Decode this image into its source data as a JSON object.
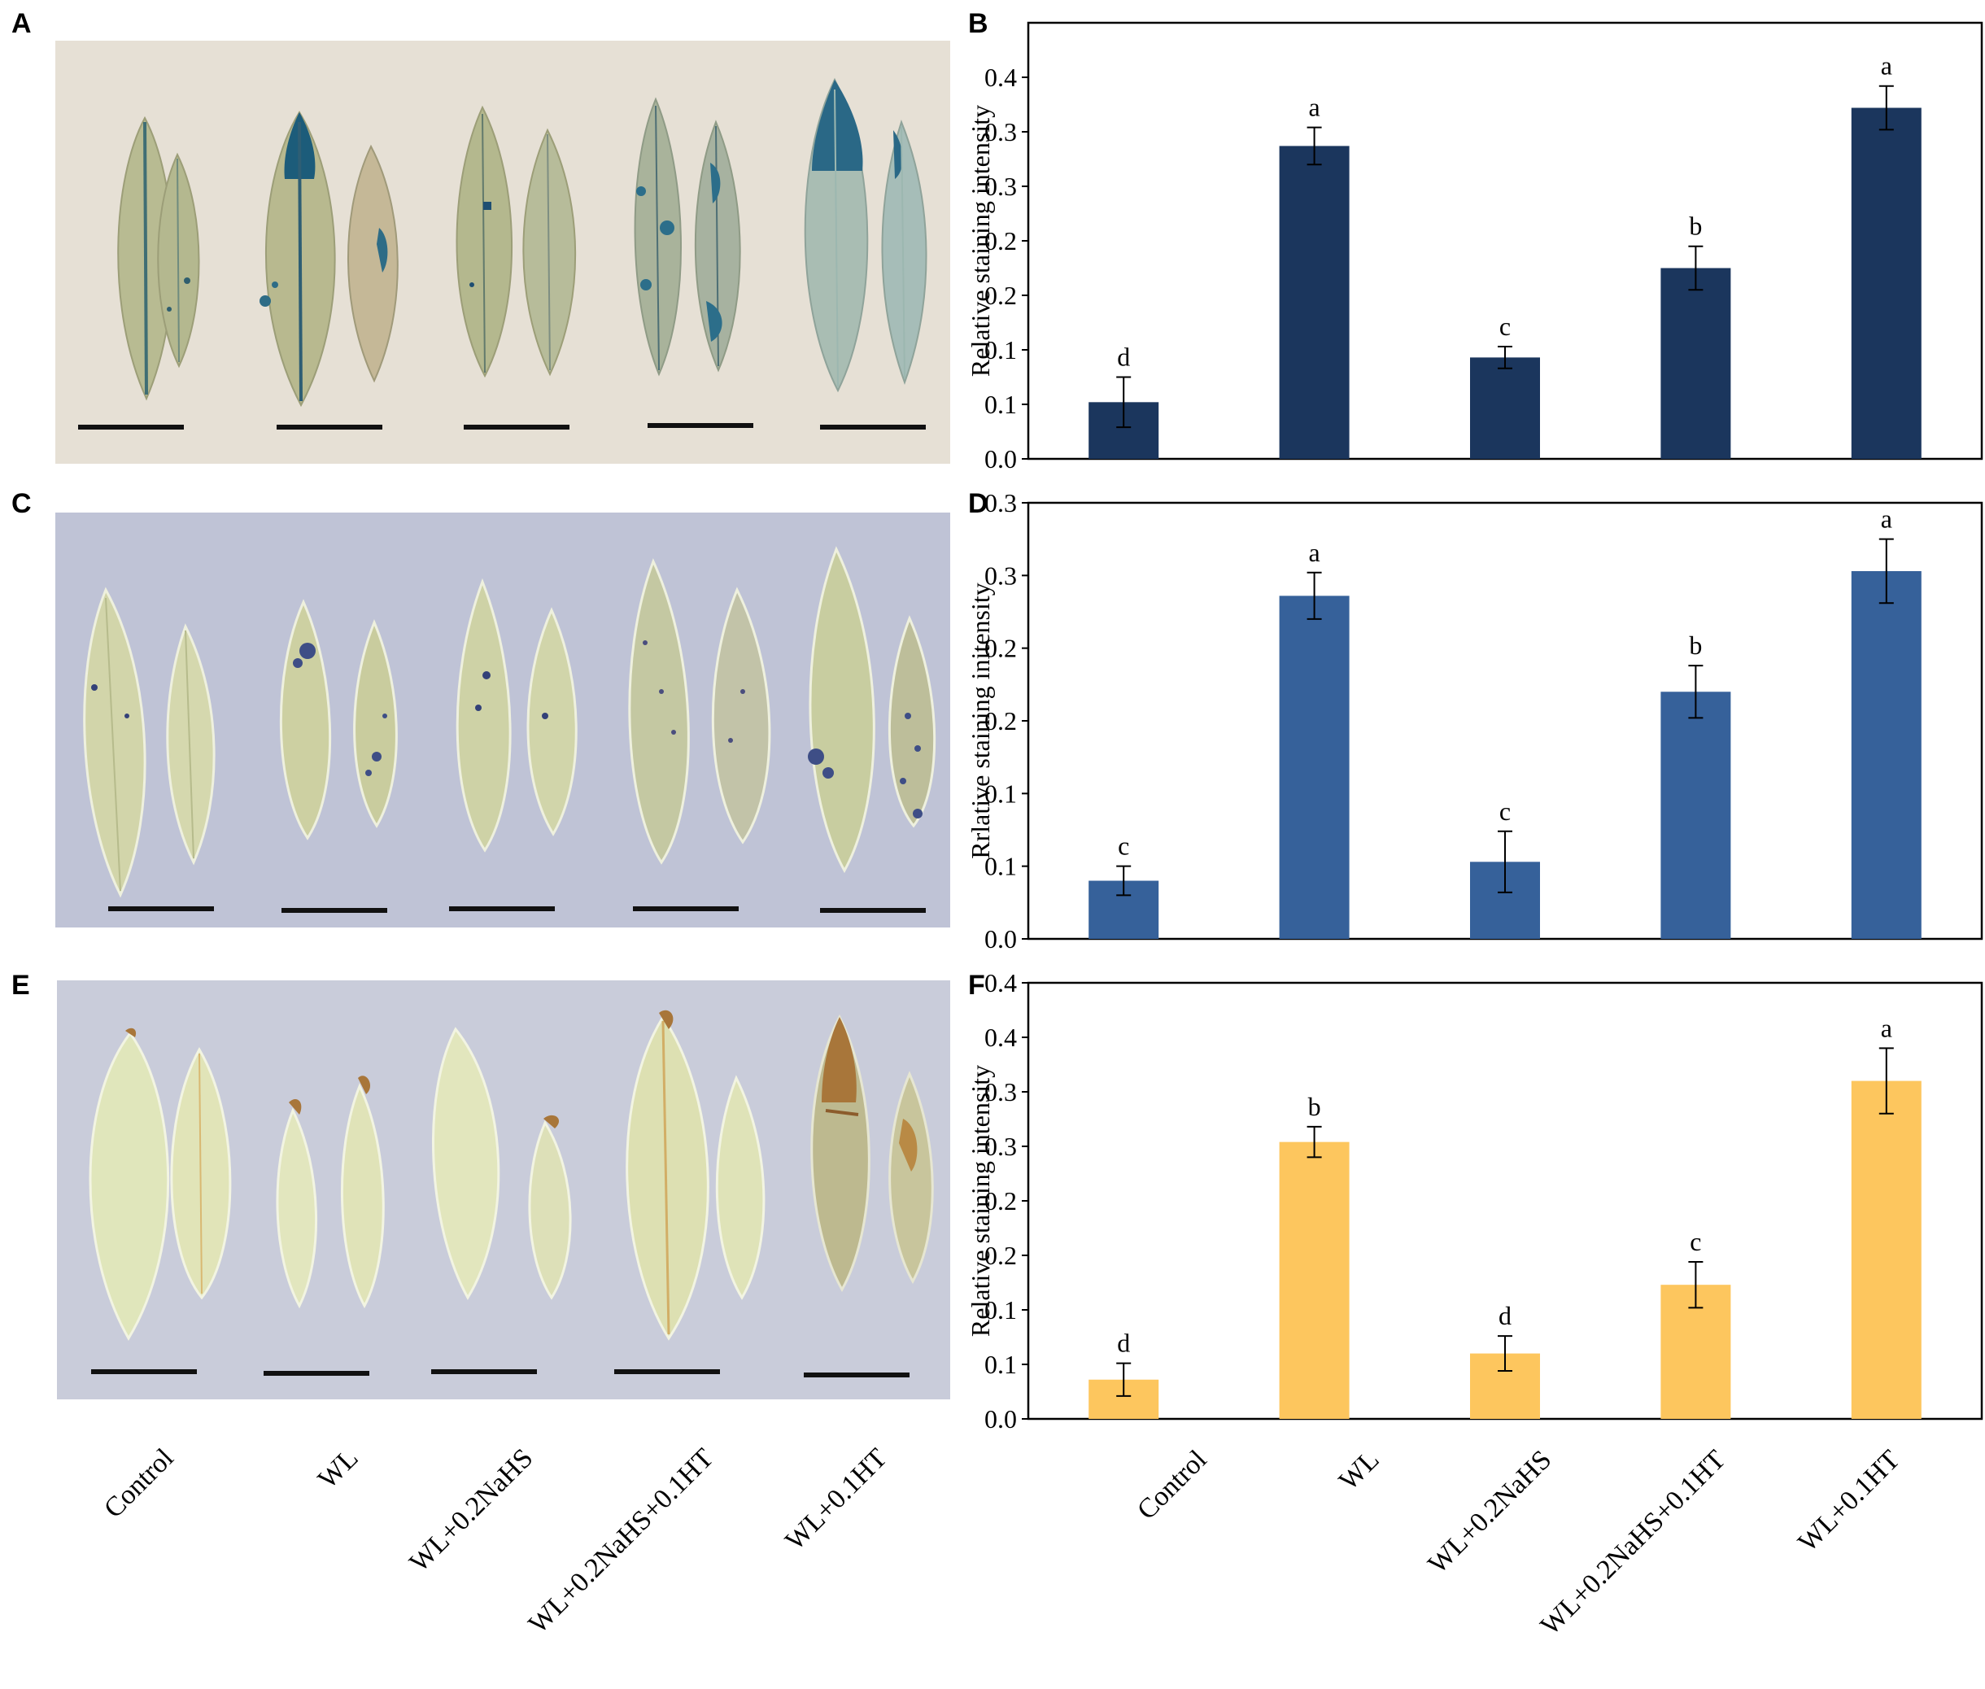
{
  "panels": {
    "a": "A",
    "b": "B",
    "c": "C",
    "d": "D",
    "e": "E",
    "f": "F"
  },
  "treatments": [
    "Control",
    "WL",
    "WL+0.2NaHS",
    "WL+0.2NaHS+0.1HT",
    "WL+0.1HT"
  ],
  "colors": {
    "navy": "#1B365D",
    "steel_blue": "#36619A",
    "amber": "#FDC65E",
    "photo_bg_a": "#E6E0D5",
    "photo_bg_c": "#BFC3D6",
    "photo_bg_e": "#C9CCDA",
    "leaf_a": "#B4B88F",
    "leaf_c": "#CFD3A6",
    "leaf_e": "#DEE3B6"
  },
  "chart_data": [
    {
      "panel": "B",
      "type": "bar",
      "title": "",
      "xlabel": "",
      "ylabel": "Relative staining intensity",
      "ylim": [
        0,
        0.4
      ],
      "yticks": [
        "0.0",
        "0.1",
        "0.1",
        "0.2",
        "0.2",
        "0.3",
        "0.3",
        "0.4"
      ],
      "categories": [
        "Control",
        "WL",
        "WL+0.2NaHS",
        "WL+0.2NaHS+0.1HT",
        "WL+0.1HT"
      ],
      "values": [
        0.052,
        0.287,
        0.093,
        0.175,
        0.322
      ],
      "errors": [
        0.023,
        0.017,
        0.01,
        0.02,
        0.02
      ],
      "letters": [
        "d",
        "a",
        "c",
        "b",
        "a"
      ],
      "color": "#1B365D"
    },
    {
      "panel": "D",
      "type": "bar",
      "title": "",
      "xlabel": "",
      "ylabel": "Rrlative staining initensity",
      "ylim": [
        0,
        0.3
      ],
      "yticks": [
        "0.0",
        "0.1",
        "0.1",
        "0.2",
        "0.2",
        "0.3",
        "0.3"
      ],
      "categories": [
        "Control",
        "WL",
        "WL+0.2NaHS",
        "WL+0.2NaHS+0.1HT",
        "WL+0.1HT"
      ],
      "values": [
        0.04,
        0.236,
        0.053,
        0.17,
        0.253
      ],
      "errors": [
        0.01,
        0.016,
        0.021,
        0.018,
        0.022
      ],
      "letters": [
        "c",
        "a",
        "c",
        "b",
        "a"
      ],
      "color": "#36619A"
    },
    {
      "panel": "F",
      "type": "bar",
      "title": "",
      "xlabel": "",
      "ylabel": "Relative staining intensity",
      "ylim": [
        0,
        0.4
      ],
      "yticks": [
        "0.0",
        "0.1",
        "0.1",
        "0.2",
        "0.2",
        "0.3",
        "0.3",
        "0.4",
        "0.4"
      ],
      "categories": [
        "Control",
        "WL",
        "WL+0.2NaHS",
        "WL+0.2NaHS+0.1HT",
        "WL+0.1HT"
      ],
      "values": [
        0.036,
        0.254,
        0.06,
        0.123,
        0.31
      ],
      "errors": [
        0.015,
        0.014,
        0.016,
        0.021,
        0.03
      ],
      "letters": [
        "d",
        "b",
        "d",
        "c",
        "a"
      ],
      "color": "#FDC65E"
    }
  ]
}
